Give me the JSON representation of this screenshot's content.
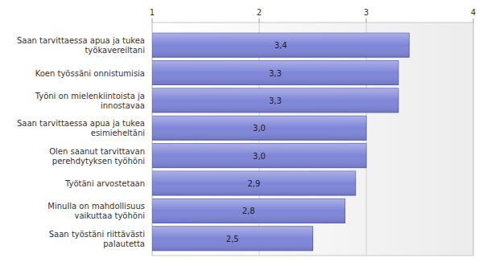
{
  "chart_data": {
    "type": "bar",
    "orientation": "horizontal",
    "categories": [
      "Saan tarvittaessa apua ja tukea työkavereiltani",
      "Koen työssäni onnistumisia",
      "Työni on mielenkiintoista ja innostavaa",
      "Saan tarvittaessa apua ja tukea esimieheltäni",
      "Olen saanut tarvittavan perehdytyksen työhöni",
      "Työtäni arvostetaan",
      "Minulla on mahdollisuus vaikuttaa työhöni",
      "Saan työstäni riittävästi palautetta"
    ],
    "values": [
      3.4,
      3.3,
      3.3,
      3.0,
      3.0,
      2.9,
      2.8,
      2.5
    ],
    "value_labels": [
      "3,4",
      "3,3",
      "3,3",
      "3,0",
      "3,0",
      "2,9",
      "2,8",
      "2,5"
    ],
    "color": "#7f86d8",
    "xlim": [
      1,
      4
    ],
    "xticks": [
      1,
      2,
      3,
      4
    ],
    "grid": true,
    "data_labels": true
  }
}
